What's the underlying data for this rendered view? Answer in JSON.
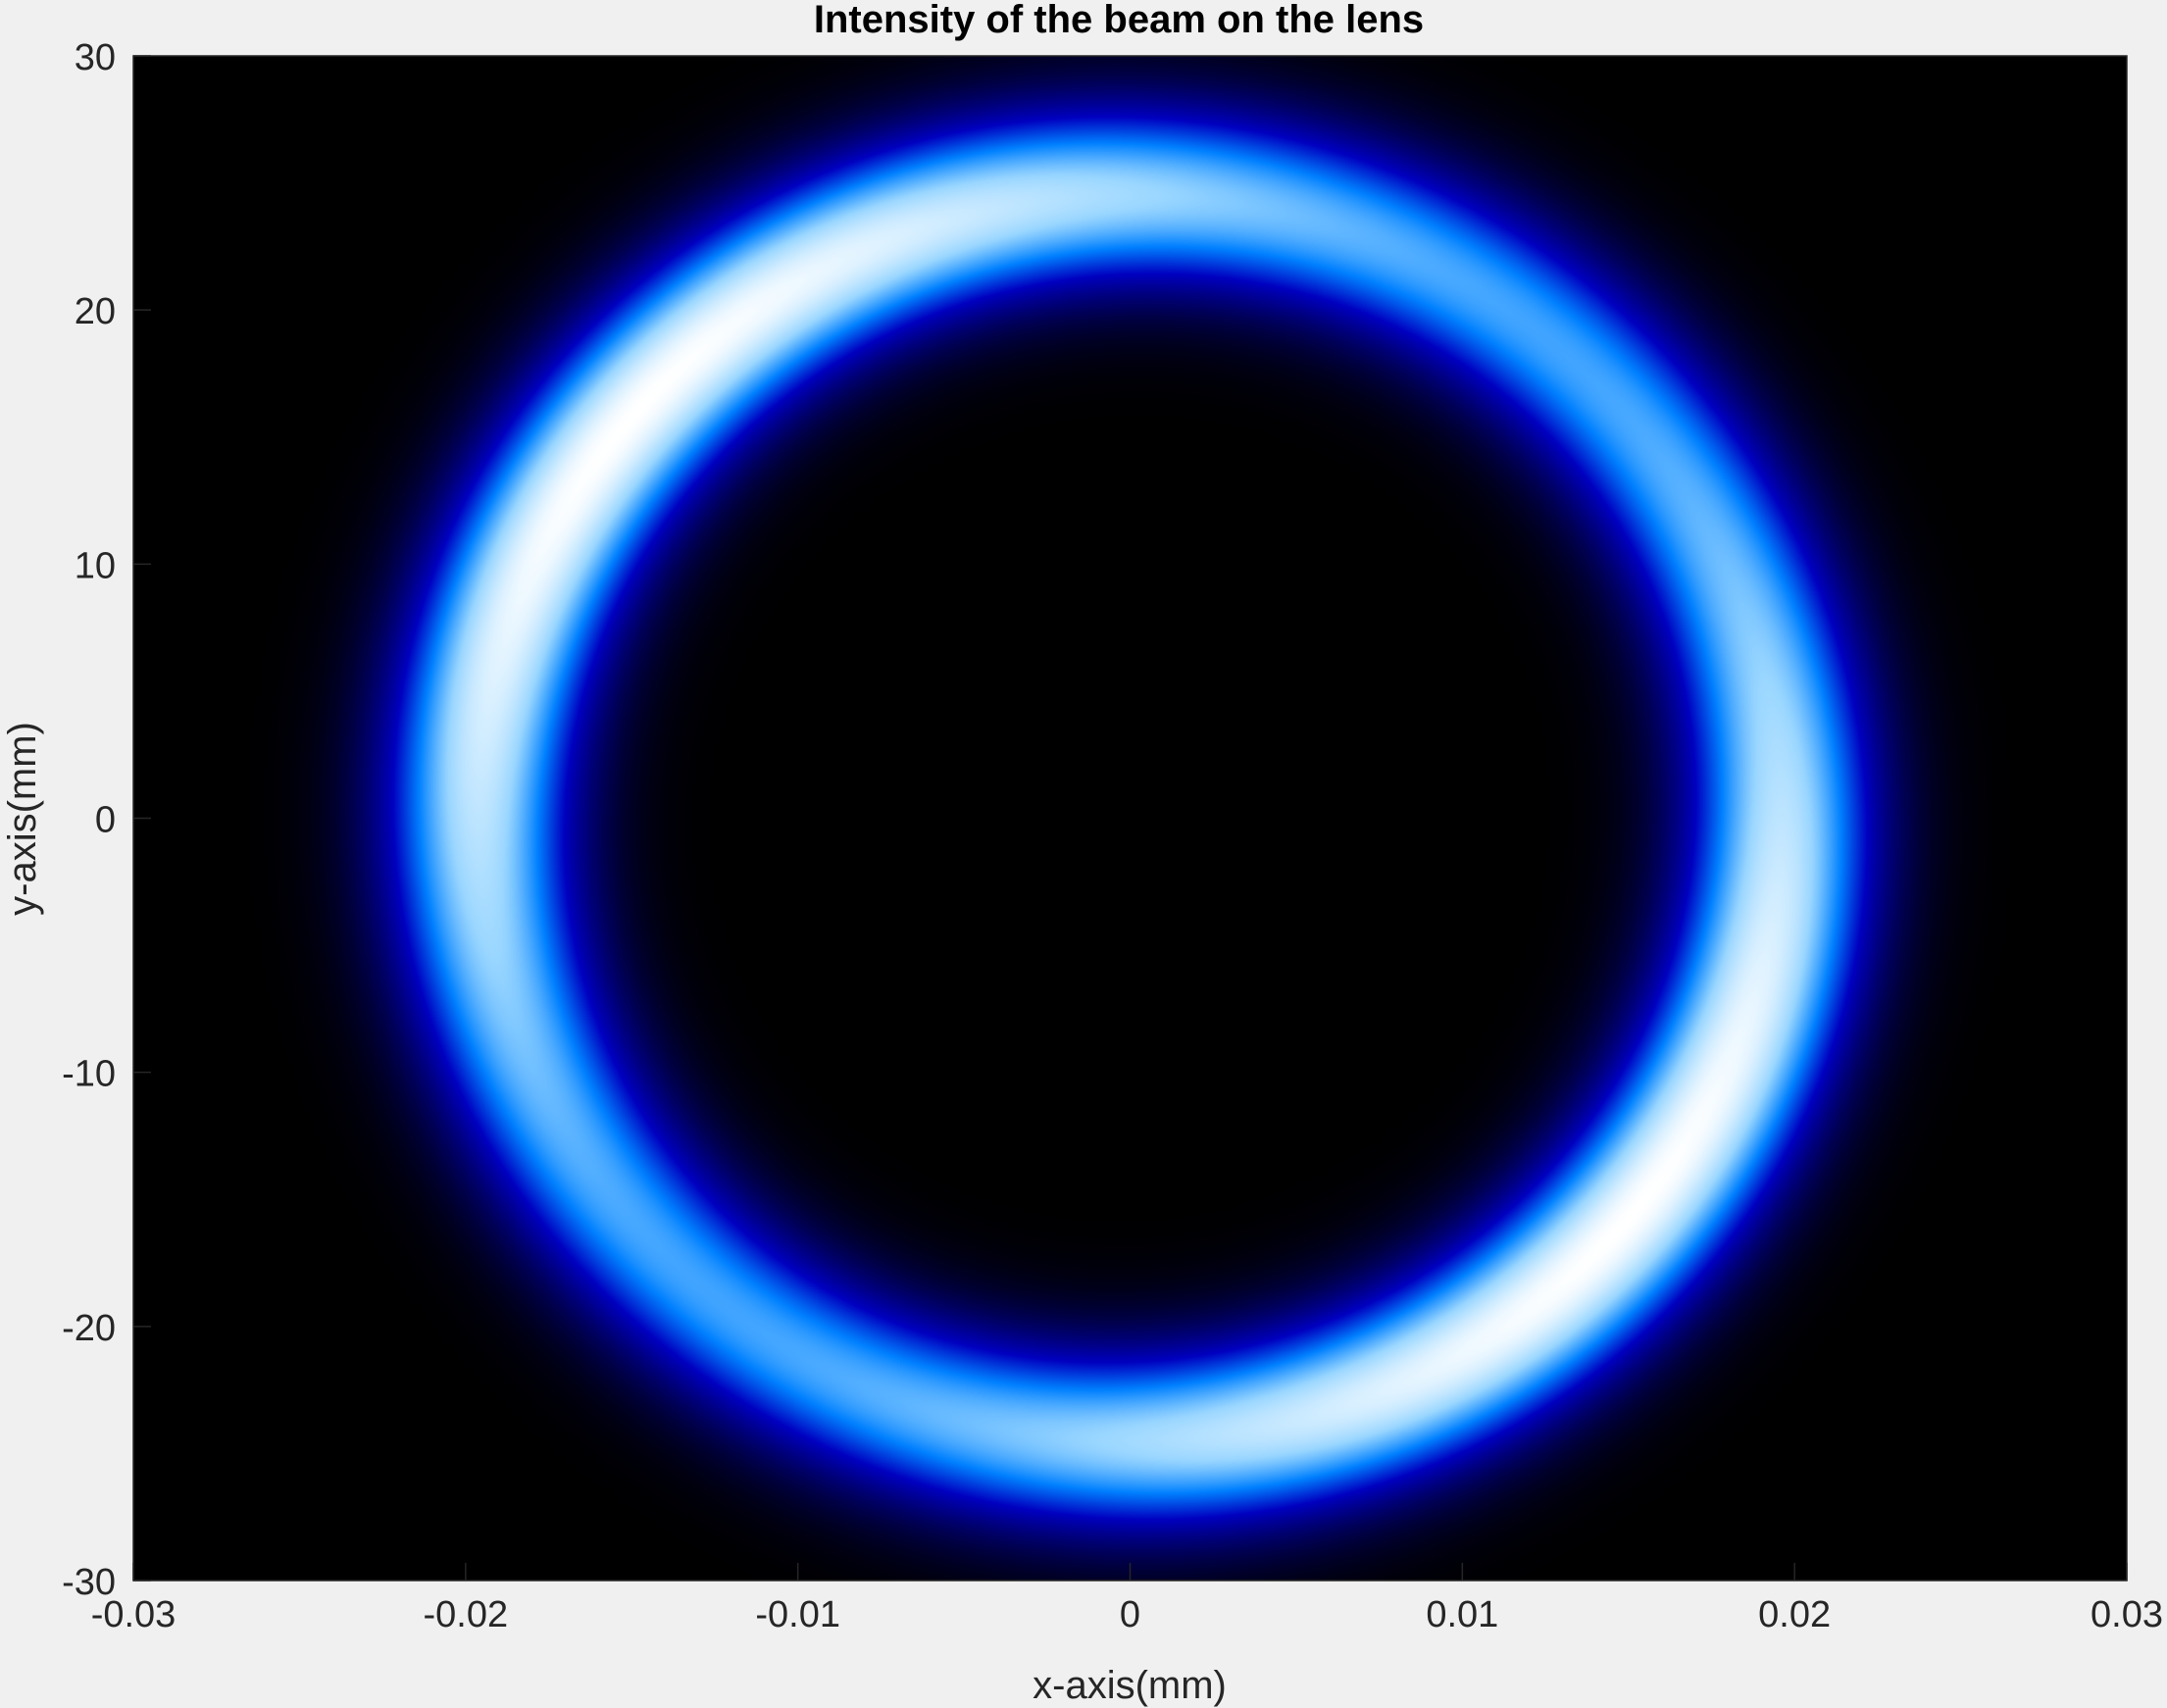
{
  "chart_data": {
    "type": "heatmap",
    "title": "Intensity of the beam on the lens",
    "xlabel": "x-axis(mm)",
    "ylabel": "y-axis(mm)",
    "xlim": [
      -0.03,
      0.03
    ],
    "ylim": [
      -30,
      30
    ],
    "xticks": [
      -0.03,
      -0.02,
      -0.01,
      0,
      0.01,
      0.02,
      0.03
    ],
    "xtick_labels": [
      "-0.03",
      "-0.02",
      "-0.01",
      "0",
      "0.01",
      "0.02",
      "0.03"
    ],
    "yticks": [
      -30,
      -20,
      -10,
      0,
      10,
      20,
      30
    ],
    "ytick_labels": [
      "-30",
      "-20",
      "-10",
      "0",
      "10",
      "20",
      "30"
    ],
    "grid": false,
    "colormap": [
      "#000000",
      "#000060",
      "#0000c0",
      "#0080ff",
      "#99d6ff",
      "#ffffff"
    ],
    "background_color": "#000000",
    "ring": {
      "center": [
        0.0,
        0.0
      ],
      "radius_x": 0.0196,
      "radius_y": 24.5,
      "width_x": 0.0027,
      "width_y": 2.4,
      "peak_angles_deg": [
        -40,
        140
      ]
    }
  }
}
